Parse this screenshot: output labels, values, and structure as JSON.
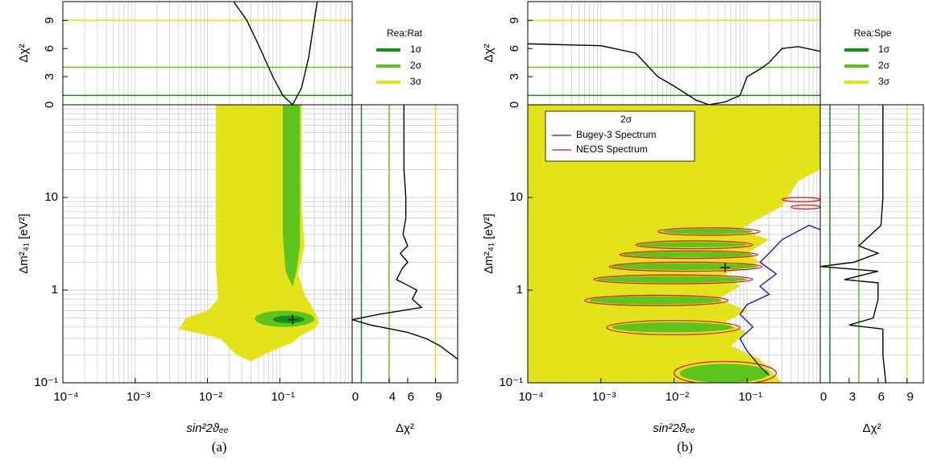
{
  "captions": [
    "(a)",
    "(b)"
  ],
  "chart_data": [
    {
      "type": "line",
      "y_label": "Δχ²",
      "xlim": [
        0.0001,
        1
      ],
      "x_log": true,
      "ylim": [
        0,
        11
      ],
      "yticks": [
        0,
        3,
        6,
        9
      ],
      "level_lines": [
        {
          "value": 1,
          "color": "#129212"
        },
        {
          "value": 4,
          "color": "#5cc41c"
        },
        {
          "value": 9,
          "color": "#e3e31a"
        }
      ],
      "legend": {
        "title": "Rea:Rat",
        "entries": [
          {
            "name": "1σ",
            "color": "#129212"
          },
          {
            "name": "2σ",
            "color": "#5cc41c"
          },
          {
            "name": "3σ",
            "color": "#e3e31a"
          }
        ]
      },
      "series": [
        {
          "color": "#000000",
          "x": [
            0.023,
            0.035,
            0.05,
            0.08,
            0.11,
            0.15,
            0.2,
            0.25,
            0.3,
            0.33
          ],
          "values": [
            11,
            9,
            6.5,
            3,
            1,
            0,
            1.8,
            5,
            9,
            11
          ]
        }
      ]
    },
    {
      "type": "contour",
      "x_label": "sin²2ϑₑₑ",
      "y_label": "Δm²₄₁  [eV²]",
      "xlim": [
        0.0001,
        1
      ],
      "x_log": true,
      "ylim": [
        0.1,
        100
      ],
      "y_log": true,
      "xticks": [
        {
          "value": 0.0001,
          "label": "10⁻⁴"
        },
        {
          "value": 0.001,
          "label": "10⁻³"
        },
        {
          "value": 0.01,
          "label": "10⁻²"
        },
        {
          "value": 0.1,
          "label": "10⁻¹"
        }
      ],
      "yticks": [
        {
          "value": 0.1,
          "label": "10⁻¹"
        },
        1,
        10
      ],
      "regions": [
        {
          "color": "#e3e31a",
          "x": [
            0.013,
            0.2,
            0.2,
            0.22,
            0.18,
            0.22,
            0.3,
            0.35,
            0.3,
            0.2,
            0.15,
            0.1,
            0.06,
            0.04,
            0.025,
            0.015,
            0.008,
            0.004,
            0.005,
            0.01,
            0.014,
            0.013
          ],
          "y": [
            100,
            100,
            8,
            3,
            1.5,
            0.9,
            0.6,
            0.45,
            0.38,
            0.33,
            0.27,
            0.24,
            0.2,
            0.17,
            0.2,
            0.3,
            0.34,
            0.38,
            0.5,
            0.6,
            0.8,
            2
          ]
        },
        {
          "color": "#5cc41c",
          "x": [
            0.11,
            0.19,
            0.19,
            0.17,
            0.15,
            0.12,
            0.11
          ],
          "y": [
            100,
            100,
            3,
            1.6,
            1.1,
            1.6,
            4
          ]
        }
      ],
      "ellipse_sets": [
        {
          "color": "#5cc41c",
          "fill": true,
          "shapes": [
            {
              "x": [
                0.045,
                0.3
              ],
              "y": [
                0.4,
                0.6
              ]
            }
          ]
        },
        {
          "color": "#129212",
          "fill": true,
          "shapes": [
            {
              "x": [
                0.08,
                0.22
              ],
              "y": [
                0.44,
                0.53
              ]
            }
          ]
        }
      ],
      "best_fit": {
        "x": 0.15,
        "y": 0.48
      }
    },
    {
      "type": "line",
      "vertical": true,
      "x_label": "Δχ²",
      "xlim": [
        0,
        11.4
      ],
      "ylim": [
        0.1,
        100
      ],
      "y_log": true,
      "xticks": [
        0,
        4,
        6,
        9
      ],
      "level_lines": [
        {
          "value": 1,
          "color": "#129212"
        },
        {
          "value": 4,
          "color": "#5cc41c"
        },
        {
          "value": 9,
          "color": "#e3e31a"
        }
      ],
      "series": [
        {
          "color": "#000000",
          "values": [
            5.6,
            5.6,
            5.8,
            5.8,
            5.5,
            6,
            5.2,
            6,
            5.4,
            4.8,
            7,
            6.5,
            7.5,
            3,
            0,
            2,
            6,
            8,
            9.5,
            10.8,
            11.4
          ],
          "y": [
            100,
            20,
            10,
            6,
            4,
            3,
            2.5,
            2,
            1.7,
            1.3,
            1,
            0.8,
            0.65,
            0.55,
            0.48,
            0.42,
            0.35,
            0.3,
            0.25,
            0.2,
            0.18
          ]
        }
      ]
    },
    {
      "type": "line",
      "y_label": "Δχ²",
      "xlim": [
        0.0001,
        1
      ],
      "x_log": true,
      "ylim": [
        0,
        11
      ],
      "yticks": [
        0,
        3,
        6,
        9
      ],
      "level_lines": [
        {
          "value": 1,
          "color": "#129212"
        },
        {
          "value": 4,
          "color": "#5cc41c"
        },
        {
          "value": 9,
          "color": "#e3e31a"
        }
      ],
      "legend": {
        "title": "Rea:Spe",
        "entries": [
          {
            "name": "1σ",
            "color": "#129212"
          },
          {
            "name": "2σ",
            "color": "#5cc41c"
          },
          {
            "name": "3σ",
            "color": "#e3e31a"
          }
        ]
      },
      "series": [
        {
          "color": "#000000",
          "x": [
            0.0001,
            0.001,
            0.003,
            0.006,
            0.01,
            0.02,
            0.03,
            0.05,
            0.08,
            0.1,
            0.15,
            0.2,
            0.3,
            0.5,
            1
          ],
          "values": [
            6.5,
            6.3,
            5.5,
            3,
            2,
            0.5,
            0,
            0.3,
            1,
            3,
            3.8,
            4.5,
            6,
            6.2,
            5.7
          ]
        }
      ]
    },
    {
      "type": "contour",
      "x_label": "sin²2ϑₑₑ",
      "y_label": "Δm²₄₁  [eV²]",
      "xlim": [
        0.0001,
        1
      ],
      "x_log": true,
      "ylim": [
        0.1,
        100
      ],
      "y_log": true,
      "xticks": [
        {
          "value": 0.0001,
          "label": "10⁻⁴"
        },
        {
          "value": 0.001,
          "label": "10⁻³"
        },
        {
          "value": 0.01,
          "label": "10⁻²"
        },
        {
          "value": 0.1,
          "label": "10⁻¹"
        }
      ],
      "yticks": [
        {
          "value": 0.1,
          "label": "10⁻¹"
        },
        1,
        10
      ],
      "legend": {
        "title": "2σ"
      },
      "regions": [
        {
          "color": "#e3e31a",
          "x": [
            0.0001,
            0.0001,
            1,
            1,
            0.5,
            0.3,
            0.15,
            0.08,
            0.2,
            0.1,
            0.15,
            0.05,
            0.08,
            0.04,
            0.1,
            0.05,
            0.1,
            0.06,
            0.15,
            0.3
          ],
          "y": [
            0.1,
            100,
            100,
            20,
            15,
            8,
            6,
            4.5,
            3.5,
            2.5,
            2,
            1.5,
            1.1,
            0.8,
            0.6,
            0.45,
            0.35,
            0.25,
            0.18,
            0.1
          ]
        }
      ],
      "series": [
        {
          "name": "Bugey-3 Spectrum",
          "color": "#1a1ad0",
          "x": [
            1,
            0.7,
            0.3,
            0.2,
            0.15,
            0.25,
            0.15,
            0.2,
            0.1,
            0.08,
            0.12,
            0.08,
            0.1,
            0.15,
            0.2
          ],
          "values": [
            4.5,
            5,
            3.5,
            2.5,
            2,
            1.5,
            1.1,
            0.9,
            0.7,
            0.55,
            0.4,
            0.3,
            0.22,
            0.15,
            0.12
          ]
        }
      ],
      "ellipse_sets": [
        {
          "color": "#5cc41c",
          "fill": true,
          "shapes": [
            {
              "x": [
                0.007,
                0.12
              ],
              "y": [
                4,
                4.6
              ]
            },
            {
              "x": [
                0.0032,
                0.1
              ],
              "y": [
                2.9,
                3.3
              ]
            },
            {
              "x": [
                0.002,
                0.12
              ],
              "y": [
                2.25,
                2.6
              ]
            },
            {
              "x": [
                0.0014,
                0.14
              ],
              "y": [
                1.65,
                1.95
              ]
            },
            {
              "x": [
                0.0009,
                0.1
              ],
              "y": [
                1.2,
                1.42
              ]
            },
            {
              "x": [
                0.0007,
                0.045
              ],
              "y": [
                0.7,
                0.86
              ]
            },
            {
              "x": [
                0.0014,
                0.065
              ],
              "y": [
                0.35,
                0.45
              ]
            },
            {
              "x": [
                0.012,
                0.2
              ],
              "y": [
                0.1,
                0.16
              ]
            }
          ]
        },
        {
          "name": "NEOS Spectrum",
          "color": "#e01010",
          "fill": false,
          "shapes": [
            {
              "x": [
                0.006,
                0.15
              ],
              "y": [
                3.9,
                4.7
              ]
            },
            {
              "x": [
                0.003,
                0.12
              ],
              "y": [
                2.8,
                3.4
              ]
            },
            {
              "x": [
                0.0018,
                0.14
              ],
              "y": [
                2.2,
                2.65
              ]
            },
            {
              "x": [
                0.0013,
                0.16
              ],
              "y": [
                1.6,
                2
              ]
            },
            {
              "x": [
                0.0008,
                0.12
              ],
              "y": [
                1.17,
                1.46
              ]
            },
            {
              "x": [
                0.0006,
                0.055
              ],
              "y": [
                0.68,
                0.88
              ]
            },
            {
              "x": [
                0.0012,
                0.08
              ],
              "y": [
                0.33,
                0.47
              ]
            },
            {
              "x": [
                0.01,
                0.25
              ],
              "y": [
                0.095,
                0.17
              ]
            },
            {
              "x": [
                0.3,
                1
              ],
              "y": [
                9,
                10
              ]
            },
            {
              "x": [
                0.4,
                1
              ],
              "y": [
                7.5,
                8.3
              ]
            }
          ]
        }
      ],
      "best_fit": {
        "x": 0.05,
        "y": 1.75
      }
    },
    {
      "type": "line",
      "vertical": true,
      "x_label": "Δχ²",
      "xlim": [
        0,
        10.7
      ],
      "ylim": [
        0.1,
        100
      ],
      "y_log": true,
      "xticks": [
        0,
        3,
        6,
        9
      ],
      "level_lines": [
        {
          "value": 1,
          "color": "#129212"
        },
        {
          "value": 4,
          "color": "#5cc41c"
        },
        {
          "value": 9,
          "color": "#e3e31a"
        }
      ],
      "series": [
        {
          "color": "#000000",
          "values": [
            6.5,
            6.5,
            6.3,
            4,
            6,
            3.5,
            0,
            6,
            2.5,
            6,
            6,
            5.5,
            3,
            6.5,
            6.5,
            6.8
          ],
          "y": [
            100,
            10,
            5,
            3,
            2.5,
            2,
            1.8,
            1.6,
            1.3,
            1.2,
            0.8,
            0.5,
            0.42,
            0.38,
            0.2,
            0.1
          ]
        }
      ]
    }
  ]
}
